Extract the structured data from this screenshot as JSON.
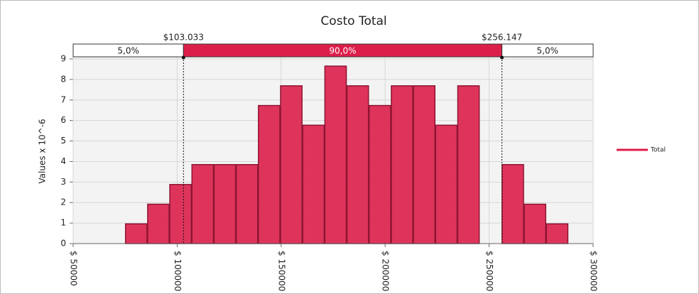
{
  "chart_data": {
    "type": "histogram",
    "title": "Costo Total",
    "ylabel": "Values x 10^-6",
    "bins": [
      75000,
      85650,
      96300,
      106950,
      117600,
      128250,
      138900,
      149550,
      160200,
      170850,
      181500,
      192150,
      202800,
      213450,
      224100,
      234750,
      245400,
      256050,
      266700,
      277350,
      288000
    ],
    "series": [
      {
        "name": "Total",
        "color": "#dc1f4a",
        "values": [
          0.96,
          1.92,
          2.88,
          3.85,
          3.85,
          3.85,
          6.73,
          7.69,
          5.77,
          8.65,
          7.69,
          6.73,
          7.69,
          7.69,
          5.77,
          7.69,
          0,
          3.85,
          1.92,
          0.96
        ]
      }
    ],
    "xlim": [
      50000,
      300000
    ],
    "xticks": [
      {
        "value": 50000,
        "label": "$ 50000"
      },
      {
        "value": 100000,
        "label": "$ 100000"
      },
      {
        "value": 150000,
        "label": "$ 150000"
      },
      {
        "value": 200000,
        "label": "$ 200000"
      },
      {
        "value": 250000,
        "label": "$ 250000"
      },
      {
        "value": 300000,
        "label": "$ 300000"
      }
    ],
    "ylim": [
      0,
      9
    ],
    "yticks": [
      0,
      1,
      2,
      3,
      4,
      5,
      6,
      7,
      8,
      9
    ],
    "grid": true,
    "legend": "right",
    "delimiters": [
      {
        "value": 103033,
        "label": "$103.033"
      },
      {
        "value": 256147,
        "label": "$256.147"
      }
    ],
    "band_labels": [
      {
        "value": 5,
        "label": "5,0%"
      },
      {
        "value": 90,
        "label": "90,0%"
      },
      {
        "value": 5,
        "label": "5,0%"
      }
    ]
  }
}
